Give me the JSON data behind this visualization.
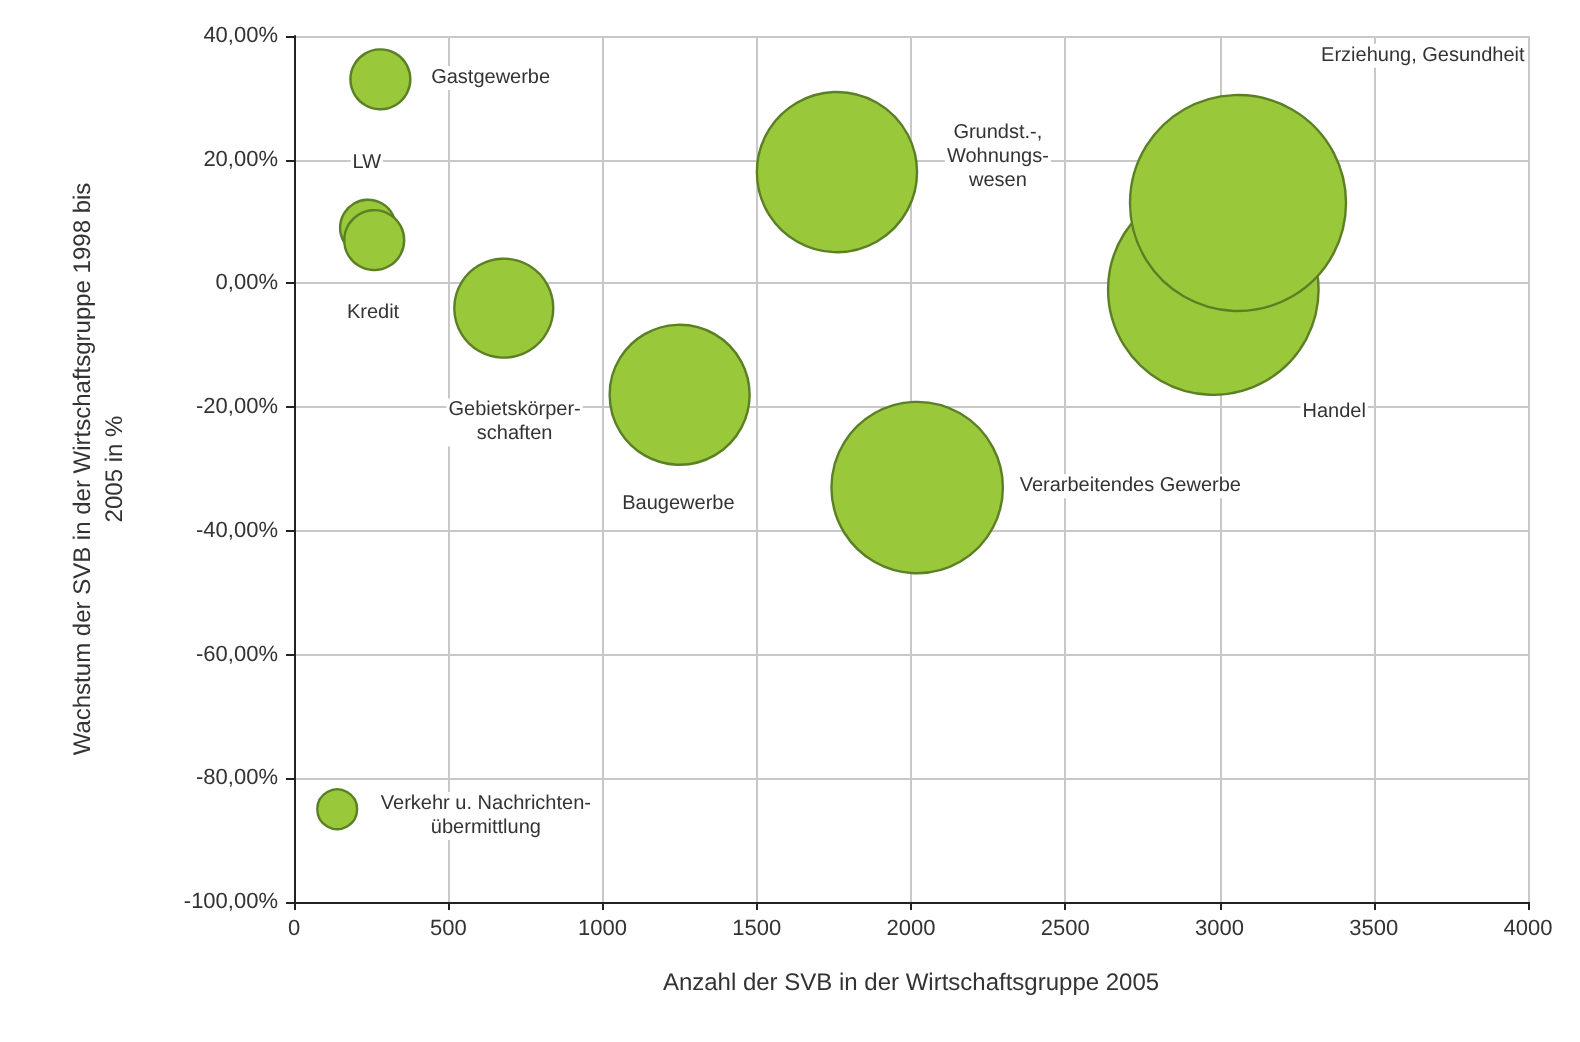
{
  "chart_data": {
    "type": "bubble",
    "xlabel": "Anzahl der SVB in der Wirtschaftsgruppe 2005",
    "ylabel": "Wachstum der SVB in der Wirtschaftsgruppe 1998 bis\n2005 in %",
    "series": [
      {
        "color": "#99c83a",
        "x": [
          280,
          240,
          260,
          680,
          1250,
          1760,
          2020,
          2980,
          3060,
          140
        ],
        "values": [
          33,
          9,
          7,
          -4,
          -18,
          18,
          -33,
          -1,
          13,
          -85
        ],
        "sizes": [
          0.077,
          0.067,
          0.077,
          0.21,
          0.42,
          0.55,
          0.63,
          0.95,
          1,
          0.034
        ]
      }
    ],
    "annotations": [
      "Gastgewerbe",
      "LW",
      "Kredit",
      "Gebietskörper-\nschaften",
      "Baugewerbe",
      "Grundst.-,\nWohnungs-\nwesen",
      "Verarbeitendes Gewerbe",
      "Handel",
      "Erziehung, Gesundheit",
      "Verkehr u. Nachrichten-\nübermittlung"
    ],
    "xlim": [
      0,
      4000
    ],
    "xticks": [
      0,
      500,
      1000,
      1500,
      2000,
      2500,
      3000,
      3500,
      4000
    ],
    "ylim": [
      -100,
      40
    ],
    "yticks": [
      {
        "value": -100,
        "label": "-100,00%"
      },
      {
        "value": -80,
        "label": "-80,00%"
      },
      {
        "value": -60,
        "label": "-60,00%"
      },
      {
        "value": -40,
        "label": "-40,00%"
      },
      {
        "value": -20,
        "label": "-20,00%"
      },
      {
        "value": 0,
        "label": "0,00%"
      },
      {
        "value": 20,
        "label": "20,00%"
      },
      {
        "value": 40,
        "label": "40,00%"
      }
    ],
    "grid": true
  }
}
